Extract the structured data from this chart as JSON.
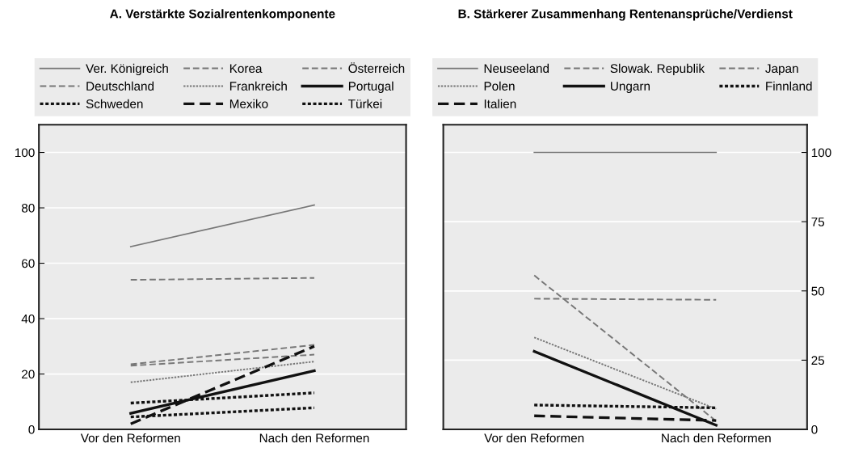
{
  "chart_data": [
    {
      "type": "line",
      "title": "A. Verstärkte Sozialrentenkomponente",
      "categories": [
        "Vor den Reformen",
        "Nach den Reformen"
      ],
      "ylim": [
        0,
        110
      ],
      "yticks": [
        0,
        20,
        40,
        60,
        80,
        100
      ],
      "grid": "y",
      "legend": "top",
      "series": [
        {
          "name": "Ver. Königreich",
          "color": "#777777",
          "line_style": "solid",
          "values": [
            66,
            81
          ]
        },
        {
          "name": "Korea",
          "color": "#777777",
          "line_style": "dashed",
          "values": [
            54,
            54.7
          ]
        },
        {
          "name": "Österreich",
          "color": "#777777",
          "line_style": "dashed",
          "values": [
            23.5,
            30.5
          ]
        },
        {
          "name": "Deutschland",
          "color": "#777777",
          "line_style": "dashed",
          "values": [
            23,
            27
          ]
        },
        {
          "name": "Frankreich",
          "color": "#777777",
          "line_style": "dotted",
          "values": [
            17,
            24.5
          ]
        },
        {
          "name": "Portugal",
          "color": "#111111",
          "line_style": "solid",
          "values": [
            5.8,
            21.2
          ]
        },
        {
          "name": "Schweden",
          "color": "#111111",
          "line_style": "dotted",
          "values": [
            9.5,
            13.2
          ]
        },
        {
          "name": "Mexiko",
          "color": "#111111",
          "line_style": "dashed",
          "values": [
            2,
            30
          ]
        },
        {
          "name": "Türkei",
          "color": "#111111",
          "line_style": "dotted",
          "values": [
            4.5,
            7.8
          ]
        }
      ]
    },
    {
      "type": "line",
      "title": "B. Stärkerer Zusammenhang Rentenansprüche/Verdienst",
      "categories": [
        "Vor den Reformen",
        "Nach den Reformen"
      ],
      "ylim": [
        0,
        110
      ],
      "yticks": [
        0,
        25,
        50,
        75,
        100
      ],
      "grid": "y",
      "legend": "top",
      "series": [
        {
          "name": "Neuseeland",
          "color": "#777777",
          "line_style": "solid",
          "values": [
            100,
            100
          ]
        },
        {
          "name": "Slowak. Republik",
          "color": "#777777",
          "line_style": "dashed",
          "values": [
            55.6,
            3
          ]
        },
        {
          "name": "Japan",
          "color": "#777777",
          "line_style": "dashed",
          "values": [
            47.2,
            46.8
          ]
        },
        {
          "name": "Polen",
          "color": "#777777",
          "line_style": "dotted",
          "values": [
            33.2,
            7.4
          ]
        },
        {
          "name": "Ungarn",
          "color": "#111111",
          "line_style": "solid",
          "values": [
            28.2,
            1.5
          ]
        },
        {
          "name": "Finnland",
          "color": "#111111",
          "line_style": "dotted",
          "values": [
            8.8,
            7.8
          ]
        },
        {
          "name": "Italien",
          "color": "#111111",
          "line_style": "dashed",
          "values": [
            4.9,
            3.2
          ]
        }
      ]
    }
  ]
}
